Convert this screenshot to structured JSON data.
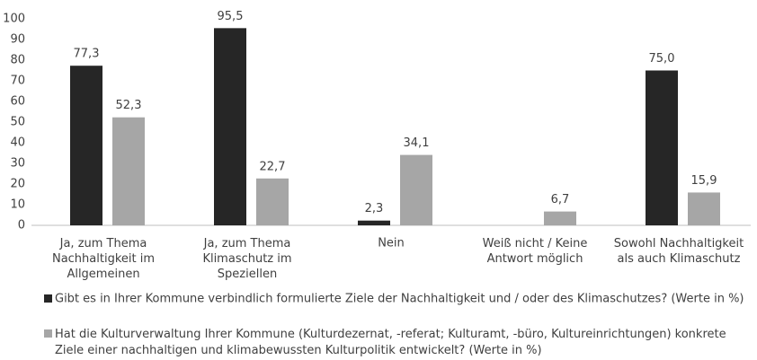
{
  "chart_data": {
    "type": "bar",
    "categories": [
      "Ja, zum Thema\nNachhaltigkeit im\nAllgemeinen",
      "Ja, zum Thema\nKlimaschutz im\nSpeziellen",
      "Nein",
      "Weiß nicht / Keine\nAntwort möglich",
      "Sowohl Nachhaltigkeit\nals auch Klimaschutz"
    ],
    "series": [
      {
        "name": "Gibt es in Ihrer Kommune verbindlich formulierte Ziele der Nachhaltigkeit und / oder des Klimaschutzes? (Werte in %)",
        "color": "#262626",
        "values": [
          77.3,
          95.5,
          2.3,
          null,
          75.0
        ],
        "value_labels": [
          "77,3",
          "95,5",
          "2,3",
          null,
          "75,0"
        ]
      },
      {
        "name": "Hat die Kulturverwaltung Ihrer Kommune (Kulturdezernat, -referat; Kulturamt, -büro, Kultureinrichtungen) konkrete\nZiele einer nachhaltigen und klimabewussten Kulturpolitik entwickelt? (Werte in %)",
        "color": "#a6a6a6",
        "values": [
          52.3,
          22.7,
          34.1,
          6.7,
          15.9
        ],
        "value_labels": [
          "52,3",
          "22,7",
          "34,1",
          "6,7",
          "15,9"
        ]
      }
    ],
    "ylim": [
      0,
      100
    ],
    "yticks": [
      0,
      10,
      20,
      30,
      40,
      50,
      60,
      70,
      80,
      90,
      100
    ],
    "grid": false,
    "legend": "bottom"
  }
}
